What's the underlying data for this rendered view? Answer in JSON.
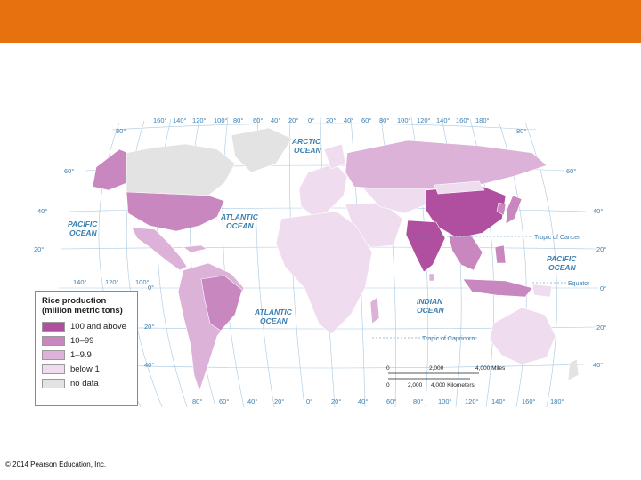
{
  "colors": {
    "header": "#e8710f",
    "ocean_text": "#3a7fb0",
    "class_100_above": "#b04ea0",
    "class_10_99": "#c987c0",
    "class_1_9": "#dcb2d8",
    "class_below_1": "#efdcee",
    "class_no_data": "#e3e3e3"
  },
  "legend": {
    "title_line1": "Rice production",
    "title_line2": "(million metric tons)",
    "items": [
      {
        "label": "100 and above",
        "color": "#b04ea0"
      },
      {
        "label": "10–99",
        "color": "#c987c0"
      },
      {
        "label": "1–9.9",
        "color": "#dcb2d8"
      },
      {
        "label": "below 1",
        "color": "#efdcee"
      },
      {
        "label": "no data",
        "color": "#e3e3e3"
      }
    ]
  },
  "oceans": {
    "arctic_1": "ARCTIC",
    "arctic_2": "OCEAN",
    "pacific_w1": "PACIFIC",
    "pacific_w2": "OCEAN",
    "atlantic_n1": "ATLANTIC",
    "atlantic_n2": "OCEAN",
    "atlantic_s1": "ATLANTIC",
    "atlantic_s2": "OCEAN",
    "indian_1": "INDIAN",
    "indian_2": "OCEAN",
    "pacific_e1": "PACIFIC",
    "pacific_e2": "OCEAN"
  },
  "reference_lines": {
    "tropic_cancer": "Tropic of Cancer",
    "equator": "Equator",
    "tropic_capricorn": "Tropic of Capricorn"
  },
  "graticule": {
    "top_longitudes": [
      "160°",
      "140°",
      "120°",
      "100°",
      "80°",
      "60°",
      "40°",
      "20°",
      "0°",
      "20°",
      "40°",
      "60°",
      "80°",
      "100°",
      "120°",
      "140°",
      "160°",
      "180°"
    ],
    "bottom_longitudes": [
      "80°",
      "60°",
      "40°",
      "20°",
      "0°",
      "20°",
      "40°",
      "60°",
      "80°",
      "100°",
      "120°",
      "140°",
      "160°",
      "180°"
    ],
    "mid_longitudes": [
      "140°",
      "120°",
      "100°"
    ],
    "left_latitudes": [
      "80°",
      "60°",
      "40°",
      "20°",
      "0°",
      "20°",
      "40°"
    ],
    "right_latitudes": [
      "80°",
      "60°",
      "40°",
      "20°",
      "0°",
      "20°",
      "40°"
    ]
  },
  "scale_bar": {
    "miles": [
      "0",
      "2,000",
      "4,000 Miles"
    ],
    "km": [
      "0",
      "2,000",
      "4,000 Kilometers"
    ]
  },
  "map_regions": {
    "usa": "class_10_99",
    "canada": "class_no_data",
    "alaska": "class_10_99",
    "greenland": "class_no_data",
    "mexico_central": "class_1_9",
    "brazil": "class_10_99",
    "south_america": "class_1_9",
    "europe": "class_below_1",
    "russia": "class_1_9",
    "africa": "class_below_1",
    "madagascar": "class_1_9",
    "middle_east": "class_below_1",
    "central_asia": "class_below_1",
    "china": "class_100_above",
    "india": "class_100_above",
    "se_asia": "class_10_99",
    "japan": "class_10_99",
    "indonesia": "class_10_99",
    "australia": "class_below_1",
    "new_zealand": "class_no_data"
  },
  "copyright": "© 2014 Pearson Education, Inc."
}
